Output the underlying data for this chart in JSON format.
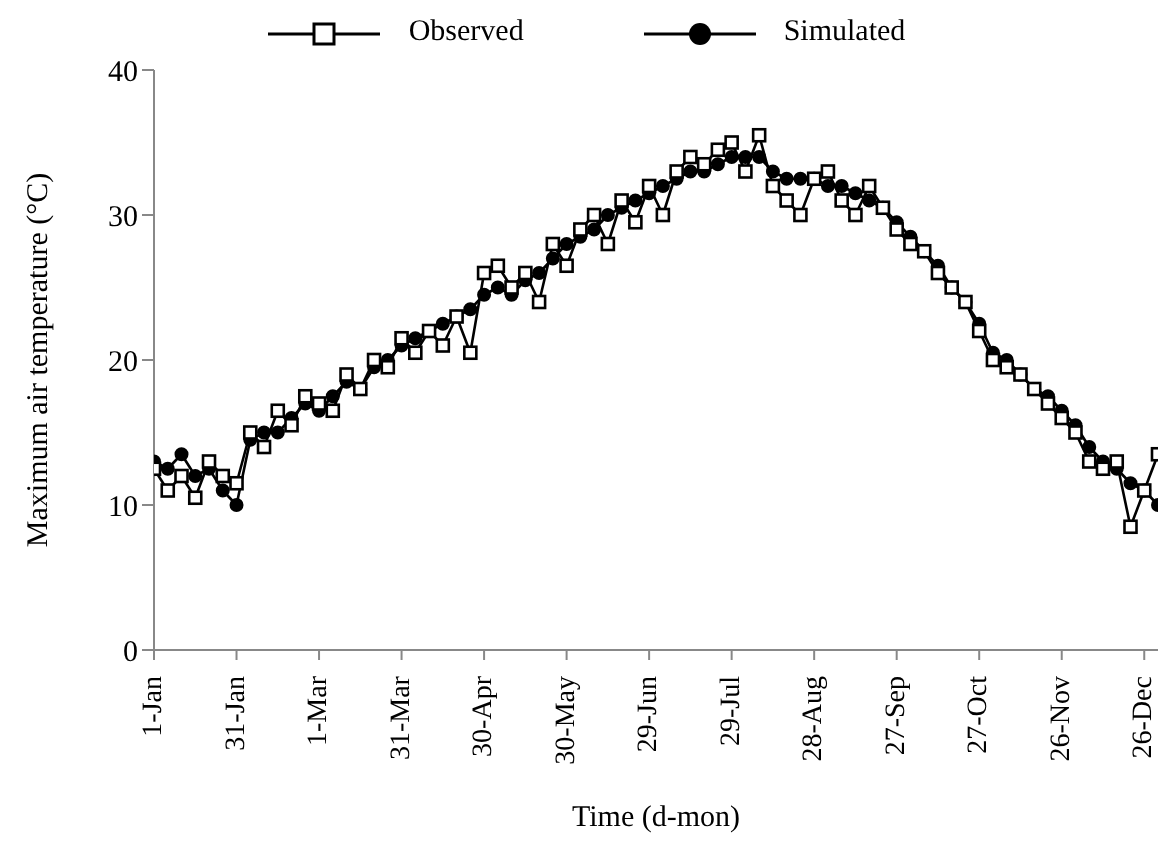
{
  "chart_data": {
    "type": "line",
    "xlabel": "Time (d-mon)",
    "ylabel": "Maximum air temperature (°C)",
    "x": [
      "--01-01",
      "--01-06",
      "--01-11",
      "--01-16",
      "--01-21",
      "--01-26",
      "--01-31",
      "--02-05",
      "--02-10",
      "--02-15",
      "--02-20",
      "--02-25",
      "--03-01",
      "--03-06",
      "--03-11",
      "--03-16",
      "--03-21",
      "--03-26",
      "--03-31",
      "--04-05",
      "--04-10",
      "--04-15",
      "--04-20",
      "--04-25",
      "--04-30",
      "--05-05",
      "--05-10",
      "--05-15",
      "--05-20",
      "--05-25",
      "--05-30",
      "--06-04",
      "--06-09",
      "--06-14",
      "--06-19",
      "--06-24",
      "--06-29",
      "--07-04",
      "--07-09",
      "--07-14",
      "--07-19",
      "--07-24",
      "--07-29",
      "--08-03",
      "--08-08",
      "--08-13",
      "--08-18",
      "--08-23",
      "--08-28",
      "--09-02",
      "--09-07",
      "--09-12",
      "--09-17",
      "--09-22",
      "--09-27",
      "--10-02",
      "--10-07",
      "--10-12",
      "--10-17",
      "--10-22",
      "--10-27",
      "--11-01",
      "--11-06",
      "--11-11",
      "--11-16",
      "--11-21",
      "--11-26",
      "--12-01",
      "--12-06",
      "--12-11",
      "--12-16",
      "--12-21",
      "--12-26",
      "--12-31"
    ],
    "series": [
      {
        "name": "Observed",
        "color": "#000000",
        "marker": "square",
        "values": [
          12.5,
          11,
          12,
          10.5,
          13,
          12,
          11.5,
          15,
          14,
          16.5,
          15.5,
          17.5,
          17,
          16.5,
          19,
          18,
          20,
          19.5,
          21.5,
          20.5,
          22,
          21,
          23,
          20.5,
          26,
          26.5,
          25,
          26,
          24,
          28,
          26.5,
          29,
          30,
          28,
          31,
          29.5,
          32,
          30,
          33,
          34,
          33.5,
          34.5,
          35,
          33,
          35.5,
          32,
          31,
          30,
          32.5,
          33,
          31,
          30,
          32,
          30.5,
          29,
          28,
          27.5,
          26,
          25,
          24,
          22,
          20,
          19.5,
          19,
          18,
          17,
          16,
          15,
          13,
          12.5,
          13,
          8.5,
          11,
          13.5
        ]
      },
      {
        "name": "Simulated",
        "color": "#000000",
        "marker": "circle",
        "values": [
          13,
          12.5,
          13.5,
          12,
          12.5,
          11,
          10,
          14.5,
          15,
          15,
          16,
          17,
          16.5,
          17.5,
          18.5,
          18,
          19.5,
          20,
          21,
          21.5,
          22,
          22.5,
          23,
          23.5,
          24.5,
          25,
          24.5,
          25.5,
          26,
          27,
          28,
          28.5,
          29,
          30,
          30.5,
          31,
          31.5,
          32,
          32.5,
          33,
          33,
          33.5,
          34,
          34,
          34,
          33,
          32.5,
          32.5,
          32.5,
          32,
          32,
          31.5,
          31,
          30.5,
          29.5,
          28.5,
          27.5,
          26.5,
          25,
          24,
          22.5,
          20.5,
          20,
          19,
          18,
          17.5,
          16.5,
          15.5,
          14,
          13,
          12.5,
          11.5,
          11,
          10
        ]
      }
    ],
    "xlim": [
      "--01-01",
      "--12-31"
    ],
    "xticks": [
      {
        "value": "--01-01",
        "label": "1-Jan"
      },
      {
        "value": "--01-31",
        "label": "31-Jan"
      },
      {
        "value": "--03-01",
        "label": "1-Mar"
      },
      {
        "value": "--03-31",
        "label": "31-Mar"
      },
      {
        "value": "--04-30",
        "label": "30-Apr"
      },
      {
        "value": "--05-30",
        "label": "30-May"
      },
      {
        "value": "--06-29",
        "label": "29-Jun"
      },
      {
        "value": "--07-29",
        "label": "29-Jul"
      },
      {
        "value": "--08-28",
        "label": "28-Aug"
      },
      {
        "value": "--09-27",
        "label": "27-Sep"
      },
      {
        "value": "--10-27",
        "label": "27-Oct"
      },
      {
        "value": "--11-26",
        "label": "26-Nov"
      },
      {
        "value": "--12-26",
        "label": "26-Dec"
      }
    ],
    "ylim": [
      0,
      40
    ],
    "yticks": [
      0,
      10,
      20,
      30,
      40
    ],
    "grid": false,
    "legend": "top",
    "line_style": "solid"
  }
}
